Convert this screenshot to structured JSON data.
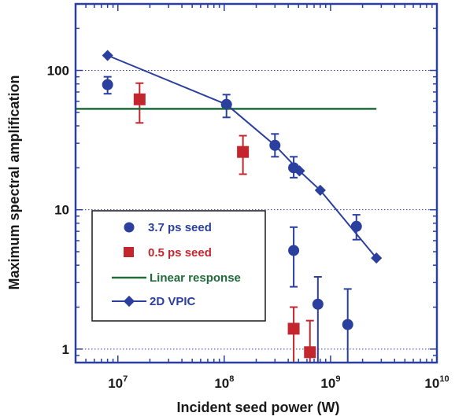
{
  "chart_data": {
    "type": "scatter",
    "xlabel": "Incident seed power (W)",
    "ylabel": "Maximum spectral amplification",
    "xscale": "log",
    "yscale": "log",
    "xlim": [
      4000000,
      10000000000
    ],
    "ylim": [
      0.8,
      300
    ],
    "x_ticks": [
      {
        "base": "10",
        "exp": "7",
        "value": 10000000
      },
      {
        "base": "10",
        "exp": "8",
        "value": 100000000
      },
      {
        "base": "10",
        "exp": "9",
        "value": 1000000000
      },
      {
        "base": "10",
        "exp": "10",
        "value": 10000000000
      }
    ],
    "y_ticks": [
      {
        "label": "1",
        "value": 1
      },
      {
        "label": "10",
        "value": 10
      },
      {
        "label": "100",
        "value": 100
      }
    ],
    "grid": "dotted horizontal at decades",
    "legend_placement": "lower-left",
    "series": [
      {
        "name": "3.7 ps seed",
        "marker": "circle",
        "color": "#2b3f9e",
        "points": [
          {
            "x": 8000000,
            "y": 79,
            "ylo": 68,
            "yhi": 90
          },
          {
            "x": 105000000,
            "y": 57,
            "ylo": 46,
            "yhi": 67
          },
          {
            "x": 300000000,
            "y": 29,
            "ylo": 24,
            "yhi": 35
          },
          {
            "x": 450000000,
            "y": 20,
            "ylo": 17,
            "yhi": 24
          },
          {
            "x": 450000000,
            "y": 5.1,
            "ylo": 2.8,
            "yhi": 7.5
          },
          {
            "x": 760000000,
            "y": 2.1,
            "ylo": 0.8,
            "yhi": 3.3
          },
          {
            "x": 1450000000,
            "y": 1.5,
            "ylo": 0.8,
            "yhi": 2.7
          },
          {
            "x": 1750000000,
            "y": 7.6,
            "ylo": 6.1,
            "yhi": 9.2
          }
        ]
      },
      {
        "name": "0.5 ps seed",
        "marker": "square",
        "color": "#c4262e",
        "points": [
          {
            "x": 16000000,
            "y": 62,
            "ylo": 42,
            "yhi": 81
          },
          {
            "x": 150000000,
            "y": 26,
            "ylo": 18,
            "yhi": 34
          },
          {
            "x": 450000000,
            "y": 1.4,
            "ylo": 0.8,
            "yhi": 2.0
          },
          {
            "x": 640000000,
            "y": 0.95,
            "ylo": 0.8,
            "yhi": 1.6
          }
        ]
      },
      {
        "name": "Linear response",
        "marker": "line",
        "color": "#1f6b3a",
        "points": [
          {
            "x": 4000000,
            "y": 53
          },
          {
            "x": 2700000000,
            "y": 53
          }
        ]
      },
      {
        "name": "2D VPIC",
        "marker": "diamond-line",
        "color": "#2b3f9e",
        "points": [
          {
            "x": 8000000,
            "y": 128
          },
          {
            "x": 105000000,
            "y": 57
          },
          {
            "x": 300000000,
            "y": 29
          },
          {
            "x": 510000000,
            "y": 19
          },
          {
            "x": 800000000,
            "y": 13.8
          },
          {
            "x": 2700000000,
            "y": 4.5
          }
        ]
      }
    ]
  }
}
